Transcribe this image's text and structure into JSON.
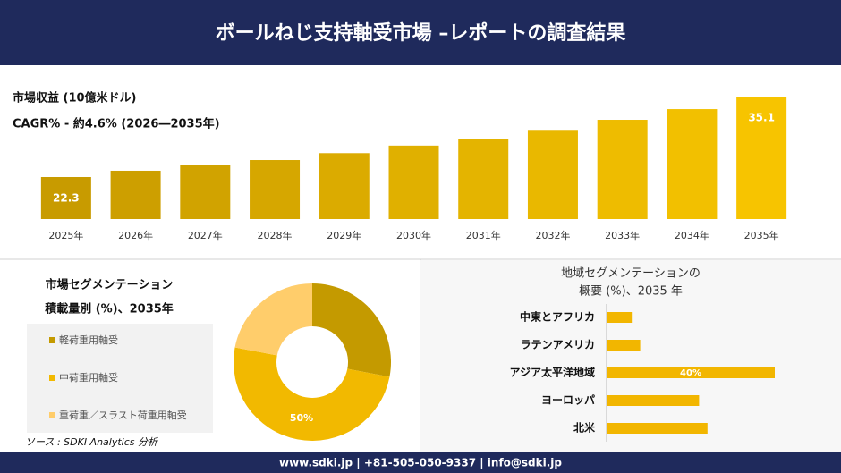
{
  "header": {
    "title": "ボールねじ支持軸受市場 –レポートの調査結果"
  },
  "chart_data": [
    {
      "type": "bar",
      "title": "市場収益 (10億米ドル)",
      "subtitle": "CAGR% - 約4.6% (2026―2035年)",
      "categories": [
        "2025年",
        "2026年",
        "2027年",
        "2028年",
        "2029年",
        "2030年",
        "2031年",
        "2032年",
        "2033年",
        "2034年",
        "2035年"
      ],
      "values": [
        22.3,
        23.3,
        24.2,
        25.0,
        26.1,
        27.3,
        28.4,
        29.8,
        31.4,
        33.1,
        35.1
      ],
      "color": [
        "#c89b00",
        "#f7c400"
      ]
    },
    {
      "type": "donut",
      "title": [
        "市場セグメンテーション",
        "積載量別 (%)、2035年"
      ],
      "categories": [
        "軽荷重用軸受",
        "中荷重用軸受",
        "重荷重／スラスト荷重用軸受"
      ],
      "values": [
        28,
        50,
        22
      ],
      "value_labels": [
        null,
        "50%",
        null
      ],
      "colors": [
        "#c49a00",
        "#f2b900",
        "#ffcd6b"
      ]
    },
    {
      "type": "hbar",
      "title": [
        "地域セグメンテーションの",
        "概要 (%)、2035 年"
      ],
      "categories": [
        "中東とアフリカ",
        "ラテンアメリカ",
        "アジア太平洋地域",
        "ヨーロッパ",
        "北米"
      ],
      "values": [
        6,
        8,
        40,
        22,
        24
      ],
      "value_labels": [
        null,
        null,
        "40%",
        null,
        null
      ],
      "color": "#f2b600"
    }
  ],
  "source": "ソース : SDKI Analytics 分析",
  "footer": "www.sdki.jp | +81-505-050-9337 | info@sdki.jp"
}
